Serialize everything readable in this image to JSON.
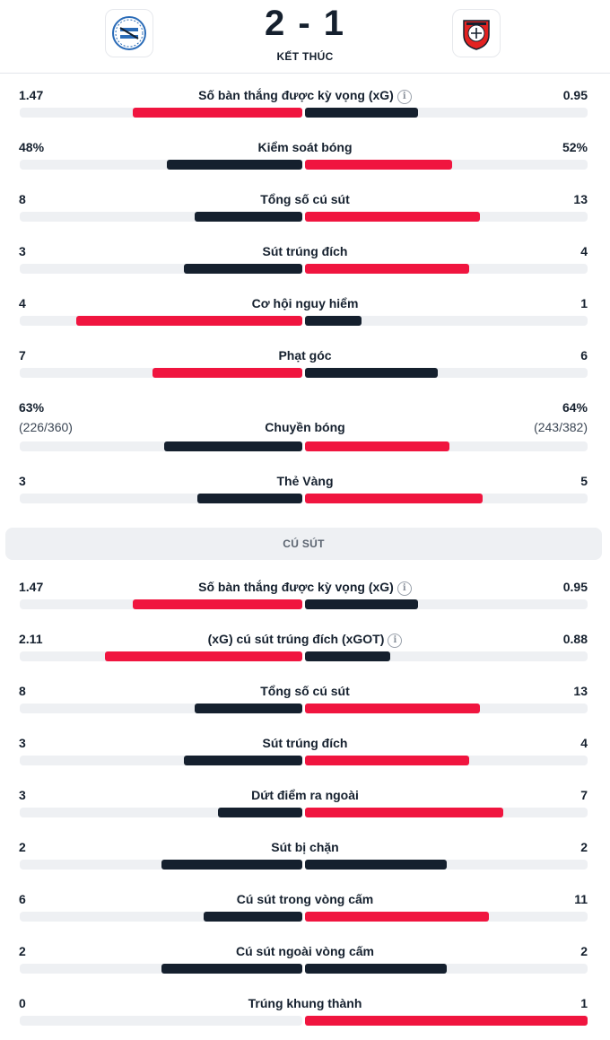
{
  "match": {
    "score": "2 - 1",
    "status": "KẾT THÚC",
    "home_logo_icon": "arminia-bielefeld-crest-icon",
    "away_logo_icon": "bayer-leverkusen-crest-icon"
  },
  "colors": {
    "dark": "#15202e",
    "red": "#f0153f",
    "track": "#eef0f3"
  },
  "overview": [
    {
      "label": "Số bàn thắng được kỳ vọng (xG)",
      "info": true,
      "home": "1.47",
      "away": "0.95",
      "home_frac": 0.6,
      "away_frac": 0.4,
      "leader": "home"
    },
    {
      "label": "Kiểm soát bóng",
      "home": "48%",
      "away": "52%",
      "home_frac": 0.48,
      "away_frac": 0.52,
      "leader": "away"
    },
    {
      "label": "Tổng số cú sút",
      "home": "8",
      "away": "13",
      "home_frac": 0.38,
      "away_frac": 0.62,
      "leader": "away"
    },
    {
      "label": "Sút trúng đích",
      "home": "3",
      "away": "4",
      "home_frac": 0.42,
      "away_frac": 0.58,
      "leader": "away"
    },
    {
      "label": "Cơ hội nguy hiểm",
      "home": "4",
      "away": "1",
      "home_frac": 0.8,
      "away_frac": 0.2,
      "leader": "home"
    },
    {
      "label": "Phạt góc",
      "home": "7",
      "away": "6",
      "home_frac": 0.53,
      "away_frac": 0.47,
      "leader": "home"
    },
    {
      "label": "Chuyền bóng",
      "home": "63%",
      "away": "64%",
      "home_sub": "(226/360)",
      "away_sub": "(243/382)",
      "home_frac": 0.49,
      "away_frac": 0.51,
      "leader": "away"
    },
    {
      "label": "Thẻ Vàng",
      "home": "3",
      "away": "5",
      "home_frac": 0.37,
      "away_frac": 0.63,
      "leader": "away"
    }
  ],
  "shots_section": {
    "title": "CÚ SÚT",
    "rows": [
      {
        "label": "Số bàn thắng được kỳ vọng (xG)",
        "info": true,
        "home": "1.47",
        "away": "0.95",
        "home_frac": 0.6,
        "away_frac": 0.4,
        "leader": "home"
      },
      {
        "label": "(xG) cú sút trúng đích (xGOT)",
        "info": true,
        "home": "2.11",
        "away": "0.88",
        "home_frac": 0.7,
        "away_frac": 0.3,
        "leader": "home"
      },
      {
        "label": "Tổng số cú sút",
        "home": "8",
        "away": "13",
        "home_frac": 0.38,
        "away_frac": 0.62,
        "leader": "away"
      },
      {
        "label": "Sút trúng đích",
        "home": "3",
        "away": "4",
        "home_frac": 0.42,
        "away_frac": 0.58,
        "leader": "away"
      },
      {
        "label": "Dứt điểm ra ngoài",
        "home": "3",
        "away": "7",
        "home_frac": 0.3,
        "away_frac": 0.7,
        "leader": "away"
      },
      {
        "label": "Sút bị chặn",
        "home": "2",
        "away": "2",
        "home_frac": 0.5,
        "away_frac": 0.5,
        "leader": "none"
      },
      {
        "label": "Cú sút trong vòng cấm",
        "home": "6",
        "away": "11",
        "home_frac": 0.35,
        "away_frac": 0.65,
        "leader": "away"
      },
      {
        "label": "Cú sút ngoài vòng cấm",
        "home": "2",
        "away": "2",
        "home_frac": 0.5,
        "away_frac": 0.5,
        "leader": "none"
      },
      {
        "label": "Trúng khung thành",
        "home": "0",
        "away": "1",
        "home_frac": 0.0,
        "away_frac": 1.0,
        "leader": "away"
      }
    ]
  }
}
